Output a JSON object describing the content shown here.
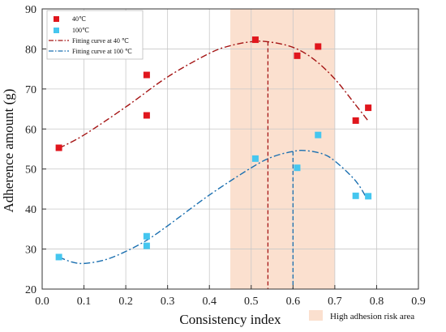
{
  "chart_data": {
    "type": "scatter",
    "xlabel": "Consistency index",
    "ylabel": "Adherence amount (g)",
    "xlim": [
      0.0,
      0.9
    ],
    "ylim": [
      20,
      90
    ],
    "xticks": [
      "0.0",
      "0.1",
      "0.2",
      "0.3",
      "0.4",
      "0.5",
      "0.6",
      "0.7",
      "0.8",
      "0.9"
    ],
    "yticks": [
      "20",
      "30",
      "40",
      "50",
      "60",
      "70",
      "80",
      "90"
    ],
    "grid": true,
    "legend_position": "top-left",
    "series": [
      {
        "name": "40℃",
        "kind": "points",
        "color": "#e0161d",
        "marker": "square",
        "x": [
          0.04,
          0.25,
          0.25,
          0.51,
          0.61,
          0.66,
          0.75,
          0.78
        ],
        "y": [
          55.3,
          73.5,
          63.4,
          82.3,
          78.3,
          80.6,
          62.1,
          65.3
        ]
      },
      {
        "name": "100℃",
        "kind": "points",
        "color": "#45c6ef",
        "marker": "square",
        "x": [
          0.04,
          0.25,
          0.25,
          0.51,
          0.61,
          0.66,
          0.75,
          0.78
        ],
        "y": [
          28.0,
          33.2,
          30.8,
          52.6,
          50.3,
          58.5,
          43.3,
          43.2
        ]
      },
      {
        "name": "Fitting curve at 40 ℃",
        "kind": "curve",
        "color": "#a51515",
        "dash": "dash-dot",
        "x": [
          0.04,
          0.1,
          0.2,
          0.3,
          0.4,
          0.45,
          0.5,
          0.54,
          0.6,
          0.65,
          0.7,
          0.75,
          0.78
        ],
        "y": [
          55.2,
          58.5,
          65.5,
          73.0,
          78.9,
          80.8,
          81.8,
          81.8,
          80.4,
          77.4,
          72.5,
          66.0,
          62.0
        ]
      },
      {
        "name": "Fitting curve at 100 ℃",
        "kind": "curve",
        "color": "#1a6fb0",
        "dash": "dash-dot",
        "x": [
          0.04,
          0.07,
          0.1,
          0.15,
          0.2,
          0.25,
          0.3,
          0.4,
          0.5,
          0.55,
          0.6,
          0.63,
          0.67,
          0.7,
          0.75,
          0.78
        ],
        "y": [
          28.0,
          26.8,
          26.4,
          27.3,
          29.4,
          32.2,
          35.8,
          43.5,
          50.3,
          53.0,
          54.4,
          54.6,
          53.8,
          52.0,
          47.0,
          42.0
        ]
      }
    ],
    "vlines": [
      {
        "x": 0.54,
        "y_top": 81.8,
        "color": "#a51515"
      },
      {
        "x": 0.6,
        "y_top": 54.4,
        "color": "#1a6fb0"
      }
    ],
    "shaded_region": {
      "x_range": [
        0.45,
        0.7
      ],
      "label": "High adhesion risk area",
      "color": "#fbe0cf"
    }
  }
}
